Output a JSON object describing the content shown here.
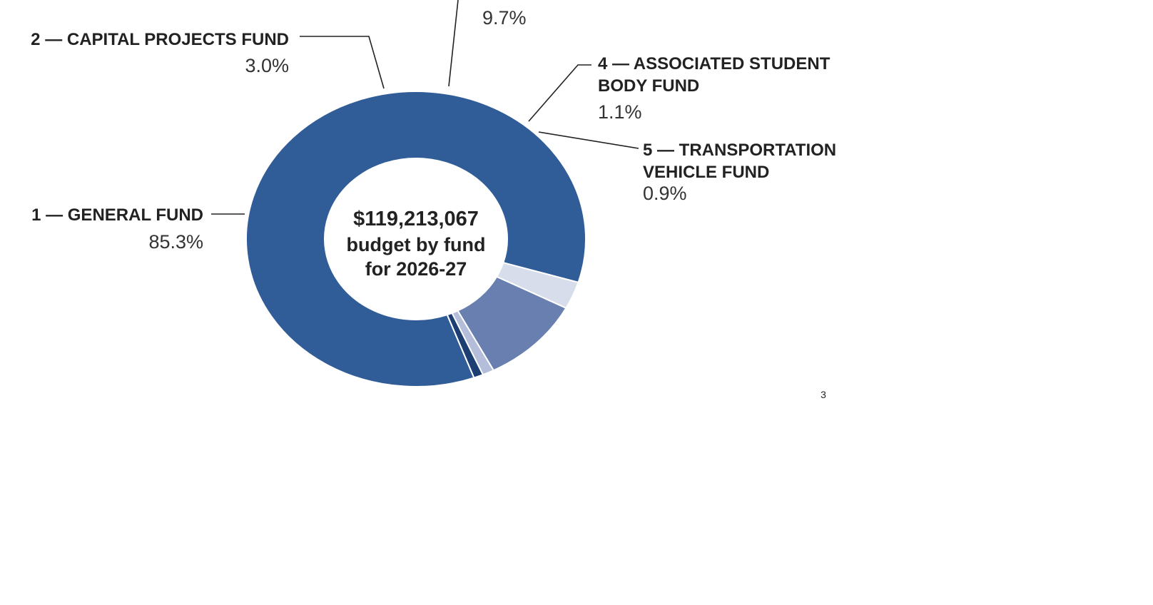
{
  "chart_data": {
    "type": "pie",
    "variant": "donut",
    "center_text": [
      "$119,213,067",
      "budget by fund",
      "for 2026-27"
    ],
    "segments": [
      {
        "name_lines": [
          "1 — GENERAL FUND"
        ],
        "percent_label": "85.3%",
        "value": 85.3,
        "color": "#305c98"
      },
      {
        "name_lines": [
          "2 — CAPITAL PROJECTS FUND"
        ],
        "percent_label": "3.0%",
        "value": 3.0,
        "color": "#d8ddec"
      },
      {
        "name_lines": [],
        "percent_label": "9.7%",
        "value": 9.7,
        "color": "#687fb0"
      },
      {
        "name_lines": [
          "4 — ASSOCIATED STUDENT",
          "BODY FUND"
        ],
        "percent_label": "1.1%",
        "value": 1.1,
        "color": "#b4bedb"
      },
      {
        "name_lines": [
          "5 — TRANSPORTATION",
          "VEHICLE FUND"
        ],
        "percent_label": "0.9%",
        "value": 0.9,
        "color": "#1d3e72"
      }
    ]
  },
  "page_number": "3"
}
